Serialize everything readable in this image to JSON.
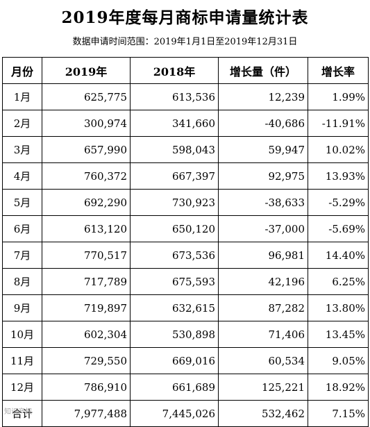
{
  "title": "2019年度每月商标申请量统计表",
  "subtitle": "数据申请时间范围：2019年1月1日至2019年12月31日",
  "table": {
    "headers": [
      "月份",
      "2019年",
      "2018年",
      "增长量（件）",
      "增长率"
    ],
    "rows": [
      [
        "1月",
        "625,775",
        "613,536",
        "12,239",
        "1.99%"
      ],
      [
        "2月",
        "300,974",
        "341,660",
        "-40,686",
        "-11.91%"
      ],
      [
        "3月",
        "657,990",
        "598,043",
        "59,947",
        "10.02%"
      ],
      [
        "4月",
        "760,372",
        "667,397",
        "92,975",
        "13.93%"
      ],
      [
        "5月",
        "692,290",
        "730,923",
        "-38,633",
        "-5.29%"
      ],
      [
        "6月",
        "613,120",
        "650,120",
        "-37,000",
        "-5.69%"
      ],
      [
        "7月",
        "770,517",
        "673,536",
        "96,981",
        "14.40%"
      ],
      [
        "8月",
        "717,789",
        "675,593",
        "42,196",
        "6.25%"
      ],
      [
        "9月",
        "719,897",
        "632,615",
        "87,282",
        "13.80%"
      ],
      [
        "10月",
        "602,304",
        "530,898",
        "71,406",
        "13.45%"
      ],
      [
        "11月",
        "729,550",
        "669,016",
        "60,534",
        "9.05%"
      ],
      [
        "12月",
        "786,910",
        "661,689",
        "125,221",
        "18.92%"
      ],
      [
        "合计",
        "7,977,488",
        "7,445,026",
        "532,462",
        "7.15%"
      ]
    ]
  },
  "watermark": "知识产权"
}
